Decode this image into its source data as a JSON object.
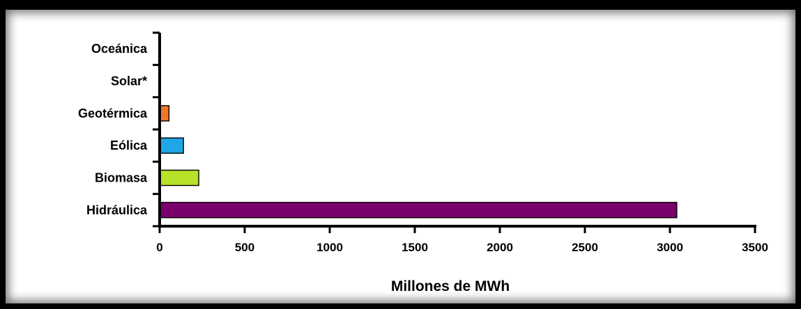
{
  "chart_data": {
    "type": "bar",
    "orientation": "horizontal",
    "categories": [
      "Oceánica",
      "Solar*",
      "Geotérmica",
      "Eólica",
      "Biomasa",
      "Hidráulica"
    ],
    "values": [
      0.5,
      1,
      55,
      140,
      230,
      3040
    ],
    "colors": [
      "#000000",
      "#000000",
      "#f0782a",
      "#1ea6e6",
      "#b6e22a",
      "#7a006c"
    ],
    "xlabel": "Millones de MWh",
    "xlim": [
      0,
      3500
    ],
    "xticks": [
      0,
      500,
      1000,
      1500,
      2000,
      2500,
      3000,
      3500
    ],
    "grid": false,
    "legend": "none"
  }
}
